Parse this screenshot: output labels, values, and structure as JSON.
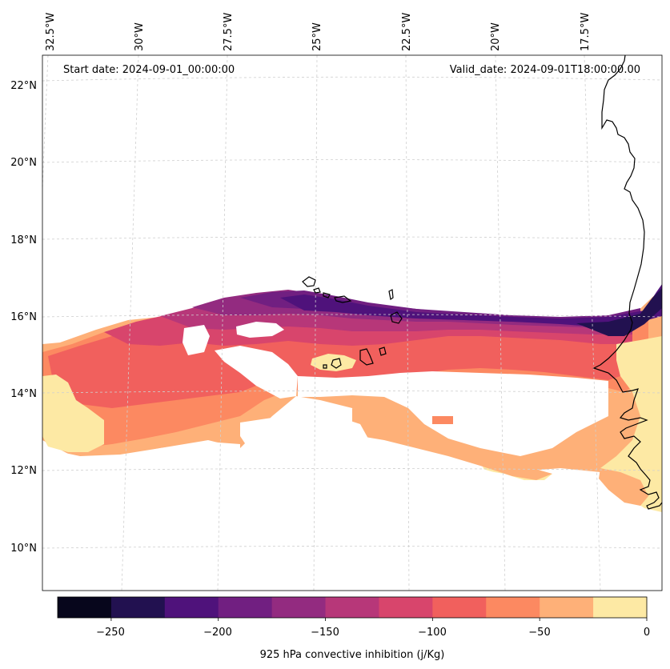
{
  "header": {
    "start_date": "Start date: 2024-09-01_00:00:00",
    "valid_date": "Valid_date: 2024-09-01T18:00:00.00"
  },
  "longitude_labels": [
    "32.5°W",
    "30°W",
    "27.5°W",
    "25°W",
    "22.5°W",
    "20°W",
    "17.5°W"
  ],
  "latitude_labels": [
    "22°N",
    "20°N",
    "18°N",
    "16°N",
    "14°N",
    "12°N",
    "10°N"
  ],
  "colorbar": {
    "title": "925 hPa convective inhibition (j/Kg)",
    "ticks": [
      "−250",
      "−200",
      "−150",
      "−100",
      "−50",
      "0"
    ],
    "levels": [
      -275,
      -250,
      -225,
      -200,
      -175,
      -150,
      -125,
      -100,
      -75,
      -50,
      -25,
      0
    ],
    "colors": [
      "#07061c",
      "#221150",
      "#4f127b",
      "#711f81",
      "#932b80",
      "#b73779",
      "#d8456c",
      "#f1605d",
      "#fc8961",
      "#feb078",
      "#fde9a4"
    ]
  },
  "field_colors": {
    "lightest": "#fde9a4",
    "light": "#feb078",
    "orange": "#fc8961",
    "coral": "#f1605d",
    "pink": "#d8456c",
    "magenta": "#b73779",
    "purple": "#932b80",
    "violet": "#711f81",
    "indigo": "#4f127b",
    "dark": "#221150"
  },
  "colors": {
    "coastline": "#000000",
    "gridline": "#cfcfcf"
  }
}
